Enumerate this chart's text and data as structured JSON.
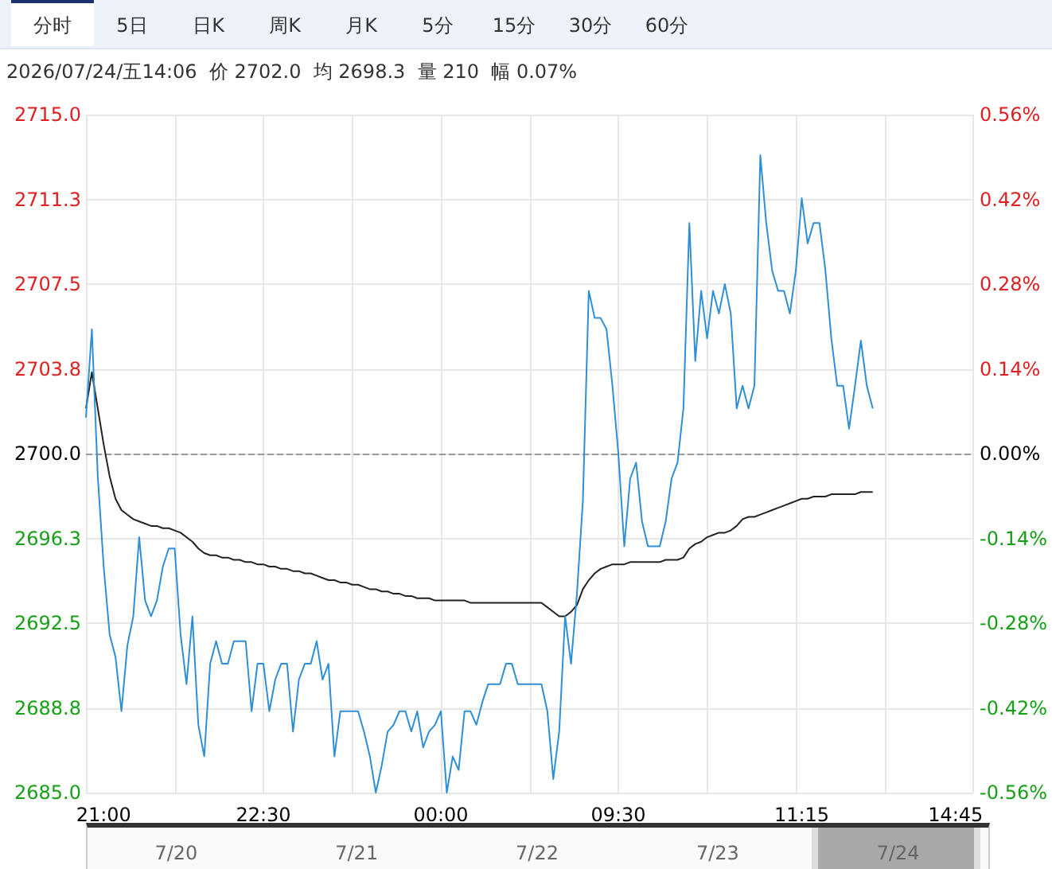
{
  "chart_data": [
    {
      "type": "line",
      "title": "2026/07/24/五14:06  价 2702.0  均 2698.3  量 210  幅 0.07%",
      "annotations": [
        "分时",
        "5日",
        "日K",
        "周K",
        "月K",
        "5分",
        "15分",
        "30分",
        "60分"
      ],
      "categories": [
        null,
        null,
        null,
        "21:00",
        null,
        null,
        null,
        null,
        null,
        null,
        null,
        null,
        null,
        null,
        null,
        null,
        null,
        null,
        null,
        null,
        null,
        null,
        null,
        null,
        null,
        null,
        null,
        null,
        null,
        null,
        "22:30",
        null,
        null,
        null,
        null,
        null,
        null,
        null,
        null,
        null,
        null,
        null,
        null,
        null,
        null,
        null,
        null,
        null,
        null,
        null,
        null,
        null,
        null,
        null,
        null,
        null,
        null,
        null,
        null,
        null,
        "00:00",
        null,
        null,
        null,
        null,
        null,
        null,
        null,
        null,
        null,
        null,
        null,
        null,
        null,
        null,
        null,
        null,
        null,
        null,
        null,
        null,
        null,
        null,
        null,
        null,
        null,
        null,
        null,
        null,
        null,
        "09:30",
        null,
        null,
        null,
        null,
        null,
        null,
        null,
        null,
        null,
        null,
        null,
        null,
        null,
        null,
        null,
        null,
        null,
        null,
        null,
        null,
        null,
        null,
        null,
        null,
        null,
        null,
        null,
        null,
        null,
        null,
        "11:15",
        null,
        null,
        null,
        null,
        null,
        null,
        null,
        null,
        null,
        null,
        null,
        null,
        null,
        null,
        null,
        null,
        null,
        null,
        null,
        null,
        null,
        null,
        null,
        null,
        null,
        "14:45",
        null,
        null,
        null
      ],
      "series": [
        {
          "color": "#2f8fd6",
          "values": [
            2701.6,
            2705.5,
            2699.0,
            2695.0,
            2692.0,
            2691.0,
            2688.6,
            2691.5,
            2692.8,
            2696.3,
            2693.5,
            2692.8,
            2693.5,
            2695.0,
            2695.8,
            2695.8,
            2692.0,
            2689.8,
            2692.8,
            2688.0,
            2686.6,
            2690.7,
            2691.7,
            2690.7,
            2690.7,
            2691.7,
            2691.7,
            2691.7,
            2688.6,
            2690.7,
            2690.7,
            2688.6,
            2690.0,
            2690.7,
            2690.7,
            2687.7,
            2690.0,
            2690.7,
            2690.7,
            2691.7,
            2690.0,
            2690.7,
            2686.6,
            2688.6,
            2688.6,
            2688.6,
            2688.6,
            2687.7,
            2686.6,
            2685.0,
            2686.2,
            2687.7,
            2688.0,
            2688.6,
            2688.6,
            2687.7,
            2688.6,
            2687.0,
            2687.7,
            2688.0,
            2688.6,
            2685.0,
            2686.6,
            2686.0,
            2688.6,
            2688.6,
            2688.0,
            2689.0,
            2689.8,
            2689.8,
            2689.8,
            2690.7,
            2690.7,
            2689.8,
            2689.8,
            2689.8,
            2689.8,
            2689.8,
            2688.6,
            2685.6,
            2687.7,
            2692.8,
            2690.7,
            2693.8,
            2697.9,
            2707.2,
            2706.0,
            2706.0,
            2705.5,
            2703.0,
            2700.0,
            2695.9,
            2698.9,
            2699.6,
            2697.0,
            2695.9,
            2695.9,
            2695.9,
            2697.0,
            2698.9,
            2699.6,
            2702.0,
            2710.2,
            2704.1,
            2707.2,
            2705.1,
            2707.2,
            2706.2,
            2707.5,
            2706.2,
            2702.0,
            2703.0,
            2702.0,
            2703.0,
            2713.2,
            2710.2,
            2708.1,
            2707.2,
            2707.2,
            2706.2,
            2708.1,
            2711.3,
            2709.3,
            2710.2,
            2710.2,
            2708.1,
            2705.1,
            2703.0,
            2703.0,
            2701.1,
            2703.0,
            2705.0,
            2703.0,
            2702.0,
            null,
            null,
            null,
            null,
            null,
            null,
            null,
            null,
            null,
            null,
            null,
            null,
            null,
            null,
            null,
            null,
            null
          ]
        },
        {
          "color": "#222222",
          "values": [
            2702.0,
            2703.6,
            2702.0,
            2700.4,
            2699.0,
            2698.0,
            2697.5,
            2697.3,
            2697.1,
            2697.0,
            2696.9,
            2696.8,
            2696.8,
            2696.7,
            2696.7,
            2696.6,
            2696.5,
            2696.3,
            2696.1,
            2695.8,
            2695.6,
            2695.5,
            2695.5,
            2695.4,
            2695.4,
            2695.3,
            2695.3,
            2695.2,
            2695.2,
            2695.1,
            2695.1,
            2695.0,
            2695.0,
            2694.9,
            2694.9,
            2694.8,
            2694.8,
            2694.7,
            2694.7,
            2694.6,
            2694.5,
            2694.4,
            2694.4,
            2694.3,
            2694.3,
            2694.2,
            2694.2,
            2694.1,
            2694.0,
            2694.0,
            2693.9,
            2693.9,
            2693.8,
            2693.8,
            2693.7,
            2693.7,
            2693.6,
            2693.6,
            2693.6,
            2693.5,
            2693.5,
            2693.5,
            2693.5,
            2693.5,
            2693.5,
            2693.4,
            2693.4,
            2693.4,
            2693.4,
            2693.4,
            2693.4,
            2693.4,
            2693.4,
            2693.4,
            2693.4,
            2693.4,
            2693.4,
            2693.4,
            2693.2,
            2693.0,
            2692.8,
            2692.8,
            2693.0,
            2693.3,
            2694.0,
            2694.4,
            2694.7,
            2694.9,
            2695.0,
            2695.1,
            2695.1,
            2695.1,
            2695.2,
            2695.2,
            2695.2,
            2695.2,
            2695.2,
            2695.2,
            2695.3,
            2695.3,
            2695.3,
            2695.4,
            2695.8,
            2696.0,
            2696.1,
            2696.3,
            2696.4,
            2696.5,
            2696.5,
            2696.6,
            2696.8,
            2697.1,
            2697.2,
            2697.2,
            2697.3,
            2697.4,
            2697.5,
            2697.6,
            2697.7,
            2697.8,
            2697.9,
            2698.0,
            2698.0,
            2698.1,
            2698.1,
            2698.1,
            2698.2,
            2698.2,
            2698.2,
            2698.2,
            2698.2,
            2698.3,
            2698.3,
            2698.3,
            null,
            null,
            null,
            null,
            null,
            null,
            null,
            null,
            null,
            null,
            null,
            null,
            null,
            null,
            null,
            null,
            null
          ]
        }
      ],
      "ylim": [
        2685,
        2715
      ],
      "yticks": [
        {
          "value": 2685,
          "label": "2685.0"
        },
        {
          "value": 2688.75,
          "label": "2688.8"
        },
        2692.5,
        {
          "value": 2696.25,
          "label": "2696.3"
        },
        {
          "value": 2700,
          "label": "2700.0"
        },
        {
          "value": 2703.75,
          "label": "2703.8"
        },
        2707.5,
        {
          "value": 2711.25,
          "label": "2711.3"
        },
        {
          "value": 2715,
          "label": "2715.0"
        }
      ],
      "y2lim": [
        -0.56,
        0.56
      ],
      "y2ticks": [
        {
          "value": -0.56,
          "label": "-0.56%"
        },
        {
          "value": -0.42,
          "label": "-0.42%"
        },
        {
          "value": -0.28,
          "label": "-0.28%"
        },
        {
          "value": -0.14,
          "label": "-0.14%"
        },
        {
          "value": 0,
          "label": "0.00%"
        },
        {
          "value": 0.14,
          "label": "0.14%"
        },
        {
          "value": 0.28,
          "label": "0.28%"
        },
        {
          "value": 0.42,
          "label": "0.42%"
        },
        {
          "value": 0.56,
          "label": "0.56%"
        }
      ],
      "ref_lines": [
        {
          "axis": "y",
          "value": 2700,
          "color": "#999999",
          "line_style": "dashed"
        }
      ],
      "grid": true,
      "marker": "none",
      "line_style": "solid"
    },
    {
      "type": "other",
      "annotations": [
        "7/20",
        "7/21",
        "7/22",
        "7/23",
        "7/24"
      ]
    }
  ]
}
